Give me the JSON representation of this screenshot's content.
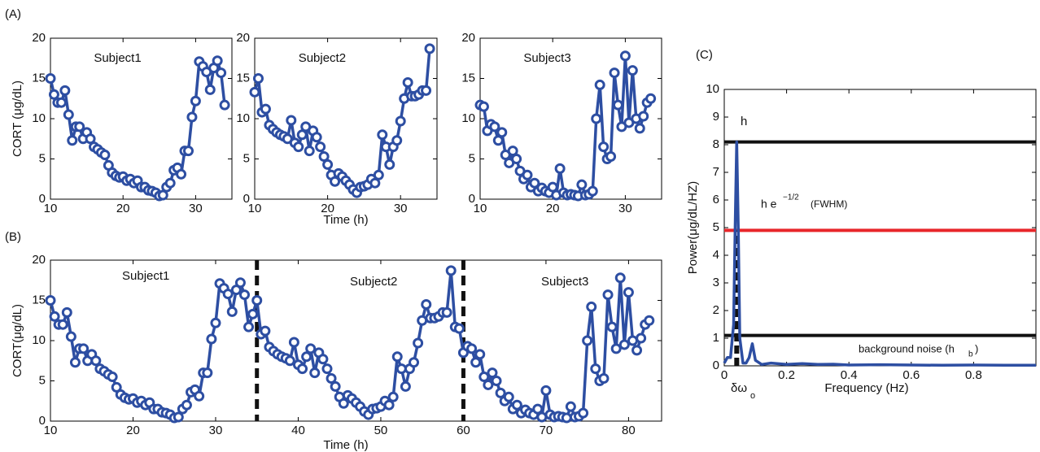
{
  "chart_data": [
    {
      "type": "line",
      "panel": "(A)",
      "title": "Subject1",
      "ylabel": "CORT (μg/dL)",
      "marker": "circle",
      "xlim": [
        10,
        35
      ],
      "xticks": [
        10,
        20,
        30
      ],
      "ylim": [
        0,
        20
      ],
      "yticks": [
        0,
        5,
        10,
        15,
        20
      ],
      "x": [
        10,
        10.5,
        11,
        11.5,
        12,
        12.5,
        13,
        13.5,
        14,
        14.5,
        15,
        15.5,
        16,
        16.5,
        17,
        17.5,
        18,
        18.5,
        19,
        19.5,
        20,
        20.5,
        21,
        21.5,
        22,
        22.5,
        23,
        23.5,
        24,
        24.5,
        25,
        25.5,
        26,
        26.5,
        27,
        27.5,
        28,
        28.5,
        29,
        29.5,
        30,
        30.5,
        31,
        31.5,
        32,
        32.5,
        33,
        33.5,
        34
      ],
      "series": [
        {
          "color": "#2d4ea2",
          "values": [
            15,
            13,
            12,
            12,
            13.5,
            10.5,
            7.3,
            9,
            9,
            7.5,
            8.3,
            7.5,
            6.5,
            6.2,
            5.8,
            5.5,
            4.2,
            3.3,
            2.9,
            2.7,
            2.8,
            2.3,
            2.5,
            2,
            2.3,
            1.5,
            1.5,
            1.1,
            1,
            0.8,
            0.4,
            0.5,
            1.5,
            2,
            3.6,
            3.9,
            3.1,
            6,
            6,
            10.2,
            12.2,
            17.1,
            16.5,
            15.8,
            13.6,
            16.3,
            17.2,
            15.7,
            11.7
          ]
        }
      ]
    },
    {
      "type": "line",
      "title": "Subject2",
      "xlabel": "Time (h)",
      "marker": "circle",
      "xlim": [
        10,
        35
      ],
      "xticks": [
        10,
        20,
        30
      ],
      "ylim": [
        0,
        20
      ],
      "yticks": [
        0,
        5,
        10,
        15,
        20
      ],
      "x": [
        10,
        10.5,
        11,
        11.5,
        12,
        12.5,
        13,
        13.5,
        14,
        14.5,
        15,
        15.5,
        16,
        16.5,
        17,
        17.5,
        18,
        18.5,
        19,
        19.5,
        20,
        20.5,
        21,
        21.5,
        22,
        22.5,
        23,
        23.5,
        24,
        24.5,
        25,
        25.5,
        26,
        26.5,
        27,
        27.5,
        28,
        28.5,
        29,
        29.5,
        30,
        30.5,
        31,
        31.5,
        32,
        32.5,
        33,
        33.5,
        34
      ],
      "series": [
        {
          "color": "#2d4ea2",
          "values": [
            13.3,
            15,
            10.8,
            11.2,
            9.2,
            8.7,
            8.3,
            8,
            7.8,
            7.5,
            9.8,
            7,
            6.5,
            8,
            9,
            6,
            8.5,
            7.7,
            6.5,
            5.3,
            4.3,
            3,
            2.2,
            3.2,
            2.8,
            2.3,
            1.8,
            1.2,
            0.8,
            1.5,
            1.6,
            1.8,
            2.5,
            2,
            3,
            8,
            6.5,
            4.3,
            6.5,
            7.3,
            9.7,
            12.5,
            14.5,
            12.8,
            12.8,
            13,
            13.5,
            13.5,
            18.7
          ]
        }
      ]
    },
    {
      "type": "line",
      "title": "Subject3",
      "marker": "circle",
      "xlim": [
        10,
        35
      ],
      "xticks": [
        10,
        20,
        30
      ],
      "ylim": [
        0,
        20
      ],
      "yticks": [
        0,
        5,
        10,
        15,
        20
      ],
      "x": [
        10,
        10.5,
        11,
        11.5,
        12,
        12.5,
        13,
        13.5,
        14,
        14.5,
        15,
        15.5,
        16,
        16.5,
        17,
        17.5,
        18,
        18.5,
        19,
        19.5,
        20,
        20.5,
        21,
        21.5,
        22,
        22.5,
        23,
        23.5,
        24,
        24.5,
        25,
        25.5,
        26,
        26.5,
        27,
        27.5,
        28,
        28.5,
        29,
        29.5,
        30,
        30.5,
        31,
        31.5,
        32,
        32.5,
        33,
        33.5
      ],
      "series": [
        {
          "color": "#2d4ea2",
          "values": [
            11.7,
            11.5,
            8.5,
            9.3,
            9,
            7.3,
            8.3,
            5.5,
            4.5,
            6,
            5,
            3.5,
            2.5,
            3,
            1.5,
            2,
            1,
            1.4,
            1,
            0.8,
            1.5,
            0.5,
            3.8,
            0.8,
            0.5,
            0.6,
            0.5,
            0.4,
            1.8,
            0.5,
            0.6,
            1,
            10,
            14.2,
            6.5,
            5,
            5.3,
            15.7,
            11.7,
            9,
            17.8,
            9.5,
            16,
            10,
            8.8,
            10.3,
            12,
            12.5
          ]
        }
      ]
    },
    {
      "type": "line",
      "panel": "(B)",
      "ylabel": "CORT(μg/dL)",
      "xlabel": "Time (h)",
      "marker": "circle",
      "annotations": [
        "Subject1",
        "Subject2",
        "Subject3"
      ],
      "vlines": [
        35,
        60
      ],
      "xlim": [
        10,
        84
      ],
      "xticks": [
        10,
        20,
        30,
        40,
        50,
        60,
        70,
        80
      ],
      "ylim": [
        0,
        20
      ],
      "yticks": [
        0,
        5,
        10,
        15,
        20
      ],
      "x": [
        10,
        10.5,
        11,
        11.5,
        12,
        12.5,
        13,
        13.5,
        14,
        14.5,
        15,
        15.5,
        16,
        16.5,
        17,
        17.5,
        18,
        18.5,
        19,
        19.5,
        20,
        20.5,
        21,
        21.5,
        22,
        22.5,
        23,
        23.5,
        24,
        24.5,
        25,
        25.5,
        26,
        26.5,
        27,
        27.5,
        28,
        28.5,
        29,
        29.5,
        30,
        30.5,
        31,
        31.5,
        32,
        32.5,
        33,
        33.5,
        34,
        34.5,
        35,
        35.5,
        36,
        36.5,
        37,
        37.5,
        38,
        38.5,
        39,
        39.5,
        40,
        40.5,
        41,
        41.5,
        42,
        42.5,
        43,
        43.5,
        44,
        44.5,
        45,
        45.5,
        46,
        46.5,
        47,
        47.5,
        48,
        48.5,
        49,
        49.5,
        50,
        50.5,
        51,
        51.5,
        52,
        52.5,
        53,
        53.5,
        54,
        54.5,
        55,
        55.5,
        56,
        56.5,
        57,
        57.5,
        58,
        58.5,
        59,
        59.5,
        60,
        60.5,
        61,
        61.5,
        62,
        62.5,
        63,
        63.5,
        64,
        64.5,
        65,
        65.5,
        66,
        66.5,
        67,
        67.5,
        68,
        68.5,
        69,
        69.5,
        70,
        70.5,
        71,
        71.5,
        72,
        72.5,
        73,
        73.5,
        74,
        74.5,
        75,
        75.5,
        76,
        76.5,
        77,
        77.5,
        78,
        78.5,
        79,
        79.5,
        80,
        80.5,
        81,
        81.5,
        82,
        82.5
      ],
      "series": [
        {
          "color": "#2d4ea2",
          "values": [
            15,
            13,
            12,
            12,
            13.5,
            10.5,
            7.3,
            9,
            9,
            7.5,
            8.3,
            7.5,
            6.5,
            6.2,
            5.8,
            5.5,
            4.2,
            3.3,
            2.9,
            2.7,
            2.8,
            2.3,
            2.5,
            2,
            2.3,
            1.5,
            1.5,
            1.1,
            1,
            0.8,
            0.4,
            0.5,
            1.5,
            2,
            3.6,
            3.9,
            3.1,
            6,
            6,
            10.2,
            12.2,
            17.1,
            16.5,
            15.8,
            13.6,
            16.3,
            17.2,
            15.7,
            11.7,
            13.3,
            15,
            10.8,
            11.2,
            9.2,
            8.7,
            8.3,
            8,
            7.8,
            7.5,
            9.8,
            7,
            6.5,
            8,
            9,
            6,
            8.5,
            7.7,
            6.5,
            5.3,
            4.3,
            3,
            2.2,
            3.2,
            2.8,
            2.3,
            1.8,
            1.2,
            0.8,
            1.5,
            1.6,
            1.8,
            2.5,
            2,
            3,
            8,
            6.5,
            4.3,
            6.5,
            7.3,
            9.7,
            12.5,
            14.5,
            12.8,
            12.8,
            13,
            13.5,
            13.5,
            18.7,
            11.7,
            11.5,
            8.5,
            9.3,
            9,
            7.3,
            8.3,
            5.5,
            4.5,
            6,
            5,
            3.5,
            2.5,
            3,
            1.5,
            2,
            1,
            1.4,
            1,
            0.8,
            1.5,
            0.5,
            3.8,
            0.8,
            0.5,
            0.6,
            0.5,
            0.4,
            1.8,
            0.5,
            0.6,
            1,
            10,
            14.2,
            6.5,
            5,
            5.3,
            15.7,
            11.7,
            9,
            17.8,
            9.5,
            16,
            10,
            8.8,
            10.3,
            12,
            12.5
          ]
        }
      ]
    },
    {
      "type": "line",
      "panel": "(C)",
      "ylabel": "Power(μg/dL/HZ)",
      "xlabel": "Frequency (Hz)",
      "annotations": [
        "h",
        "h e",
        "−1/2",
        "(FWHM)",
        "background noise (h",
        "b",
        ")",
        "δω",
        "o"
      ],
      "hlines": [
        {
          "value": 8.1,
          "color": "#111111"
        },
        {
          "value": 4.9,
          "color": "#e8262a"
        },
        {
          "value": 1.1,
          "color": "#111111"
        }
      ],
      "dashed": {
        "x": 0.04,
        "y": [
          0,
          4.9
        ]
      },
      "xlim": [
        0,
        1
      ],
      "xticks": [
        0,
        0.2,
        0.4,
        0.6,
        0.8
      ],
      "ylim": [
        0,
        10
      ],
      "yticks": [
        0,
        1,
        2,
        3,
        4,
        5,
        6,
        7,
        8,
        9,
        10
      ],
      "x": [
        0,
        0.01,
        0.02,
        0.03,
        0.035,
        0.04,
        0.045,
        0.05,
        0.06,
        0.07,
        0.08,
        0.09,
        0.1,
        0.12,
        0.15,
        0.2,
        0.25,
        0.3,
        0.35,
        0.4,
        0.5,
        0.6,
        0.7,
        0.8,
        0.9,
        1.0
      ],
      "series": [
        {
          "color": "#2d4ea2",
          "values": [
            0.1,
            0.3,
            0.3,
            1.5,
            5,
            8.1,
            5,
            1,
            0.1,
            0.1,
            0.3,
            0.8,
            0.2,
            0.05,
            0.1,
            0.05,
            0.08,
            0.05,
            0.06,
            0.03,
            0.04,
            0.03,
            0.02,
            0.03,
            0.02,
            0.02
          ]
        }
      ]
    }
  ]
}
